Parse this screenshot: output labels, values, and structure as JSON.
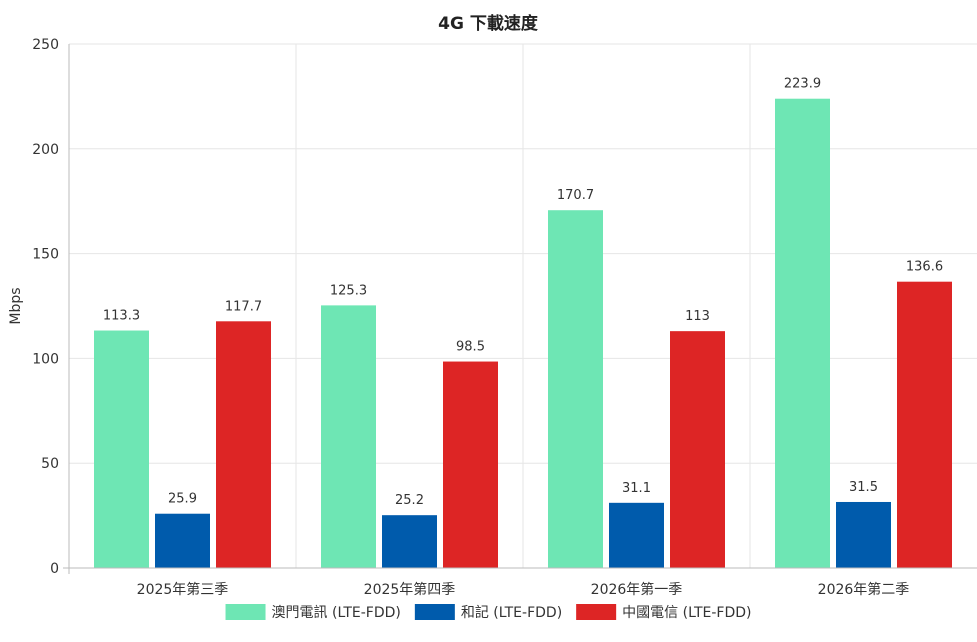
{
  "chart_data": {
    "type": "bar",
    "title": "4G 下載速度",
    "ylabel": "Mbps",
    "xlabel": "",
    "categories": [
      "2025年第三季",
      "2025年第四季",
      "2026年第一季",
      "2026年第二季"
    ],
    "series": [
      {
        "name": "澳門電訊 (LTE-FDD)",
        "color": "#6ee6b4",
        "values": [
          113.3,
          125.3,
          170.7,
          223.9
        ]
      },
      {
        "name": "和記 (LTE-FDD)",
        "color": "#005bac",
        "values": [
          25.9,
          25.2,
          31.1,
          31.5
        ]
      },
      {
        "name": "中國電信 (LTE-FDD)",
        "color": "#dd2525",
        "values": [
          117.7,
          98.5,
          113,
          136.6
        ]
      }
    ],
    "ylim": [
      0,
      250
    ],
    "yticks": [
      0,
      50,
      100,
      150,
      200,
      250
    ],
    "grid": true,
    "legend_position": "bottom"
  }
}
